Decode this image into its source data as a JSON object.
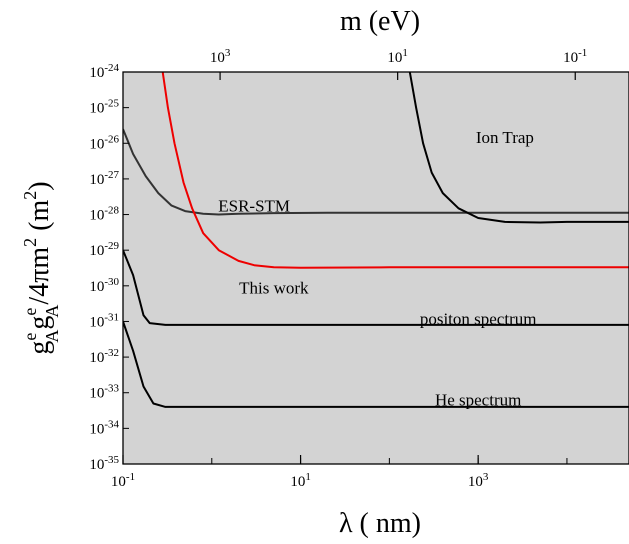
{
  "chart_data": {
    "type": "line",
    "x_scale": "log",
    "y_scale": "log",
    "xlim": [
      0.1,
      50000
    ],
    "ylim": [
      1e-35,
      1e-24
    ],
    "grid": false,
    "background_fill": "#d3d3d3",
    "x_ticks": [
      {
        "value": 0.1,
        "label": "10^-1"
      },
      {
        "value": 10,
        "label": "10^1"
      },
      {
        "value": 1000,
        "label": "10^3"
      }
    ],
    "top_ticks": [
      {
        "value": 1000,
        "label": "10^3"
      },
      {
        "value": 10,
        "label": "10^1"
      },
      {
        "value": 0.1,
        "label": "10^-1"
      }
    ],
    "y_ticks": [
      -35,
      -34,
      -33,
      -32,
      -31,
      -30,
      -29,
      -28,
      -27,
      -26,
      -25,
      -24
    ],
    "xlabel": {
      "main": "λ ( nm)"
    },
    "toplabel": {
      "main": "m (eV)"
    },
    "ylabel": {
      "base": "g",
      "sup1": "e",
      "sub1": "A",
      "mid": "g",
      "sup2": "e",
      "sub2": "A",
      "tail": "/4πm",
      "sup3": "2",
      "unit": " (m",
      "usup": "2",
      "close": ")"
    },
    "series": [
      {
        "name": "ESR-STM",
        "color": "#333333",
        "points": [
          [
            0.1,
            2.5e-26
          ],
          [
            0.13,
            5e-27
          ],
          [
            0.18,
            1.2e-27
          ],
          [
            0.25,
            4e-28
          ],
          [
            0.35,
            1.8e-28
          ],
          [
            0.5,
            1.25e-28
          ],
          [
            0.8,
            1.05e-28
          ],
          [
            1.2,
            1e-28
          ],
          [
            2,
            1.05e-28
          ],
          [
            5,
            1.1e-28
          ],
          [
            20,
            1.12e-28
          ],
          [
            100,
            1.12e-28
          ],
          [
            1000,
            1.12e-28
          ],
          [
            10000,
            1.12e-28
          ],
          [
            50000,
            1.12e-28
          ]
        ]
      },
      {
        "name": "This work",
        "color": "#ee0000",
        "points": [
          [
            0.28,
            1e-24
          ],
          [
            0.32,
            1e-25
          ],
          [
            0.38,
            1e-26
          ],
          [
            0.48,
            8e-28
          ],
          [
            0.6,
            1.5e-28
          ],
          [
            0.8,
            3e-29
          ],
          [
            1.2,
            1e-29
          ],
          [
            2,
            5e-30
          ],
          [
            3,
            3.8e-30
          ],
          [
            5,
            3.3e-30
          ],
          [
            10,
            3.2e-30
          ],
          [
            100,
            3.3e-30
          ],
          [
            1000,
            3.3e-30
          ],
          [
            10000,
            3.3e-30
          ],
          [
            50000,
            3.3e-30
          ]
        ]
      },
      {
        "name": "Ion Trap",
        "color": "#000000",
        "points": [
          [
            170,
            1e-24
          ],
          [
            200,
            1e-25
          ],
          [
            240,
            1e-26
          ],
          [
            300,
            1.5e-27
          ],
          [
            400,
            4e-28
          ],
          [
            600,
            1.5e-28
          ],
          [
            1000,
            8e-29
          ],
          [
            2000,
            6.2e-29
          ],
          [
            5000,
            6e-29
          ],
          [
            10000,
            6.2e-29
          ],
          [
            50000,
            6.2e-29
          ]
        ]
      },
      {
        "name": "positon spectrum",
        "color": "#000000",
        "points": [
          [
            0.1,
            1e-29
          ],
          [
            0.13,
            2e-30
          ],
          [
            0.17,
            1.5e-31
          ],
          [
            0.2,
            9e-32
          ],
          [
            0.3,
            8e-32
          ],
          [
            1,
            8e-32
          ],
          [
            100,
            8e-32
          ],
          [
            50000,
            8e-32
          ]
        ]
      },
      {
        "name": "He spectrum",
        "color": "#000000",
        "points": [
          [
            0.1,
            1e-31
          ],
          [
            0.13,
            1.5e-32
          ],
          [
            0.17,
            1.5e-33
          ],
          [
            0.22,
            5e-34
          ],
          [
            0.3,
            4e-34
          ],
          [
            1,
            4e-34
          ],
          [
            100,
            4e-34
          ],
          [
            50000,
            4e-34
          ]
        ]
      }
    ],
    "annotations": [
      {
        "text": "ESR-STM",
        "x": 3,
        "y": 1.8e-28
      },
      {
        "text": "This work",
        "x": 5,
        "y": 9e-31
      },
      {
        "text": "Ion Trap",
        "x": 2000,
        "y": 1.5e-26
      },
      {
        "text": "positon spectrum",
        "x": 1000,
        "y": 1.2e-31
      },
      {
        "text": "He spectrum",
        "x": 1000,
        "y": 6.5e-34
      }
    ]
  }
}
